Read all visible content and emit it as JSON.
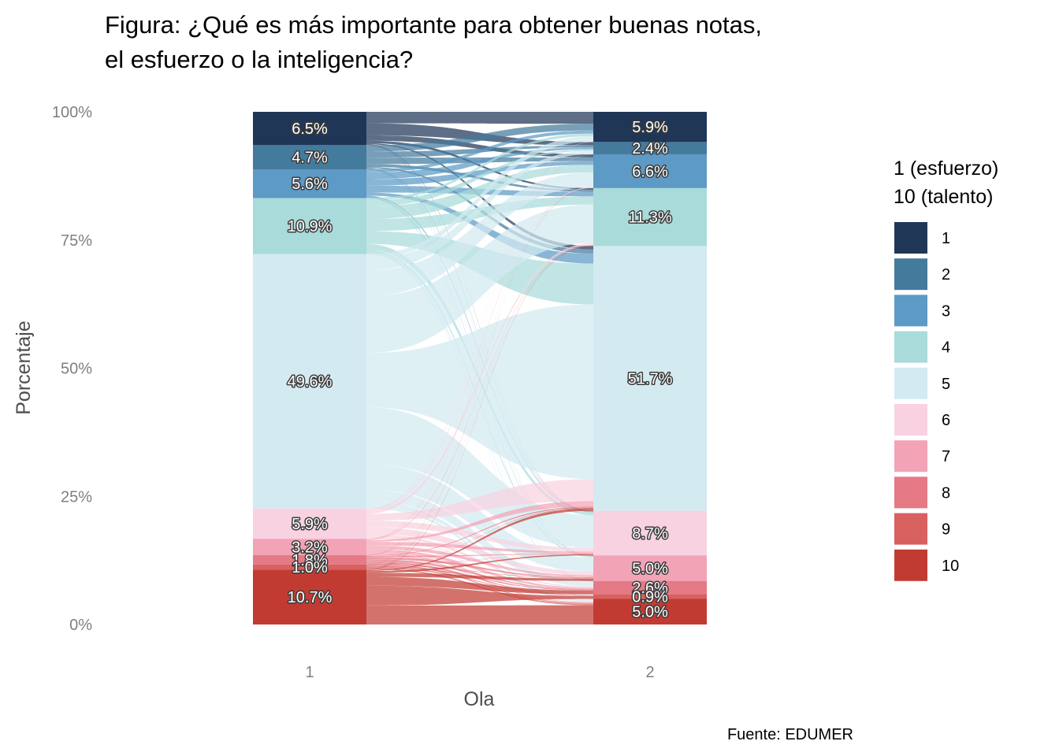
{
  "chart_data": {
    "type": "alluvial",
    "title": "Figura: ¿Qué es más importante para obtener buenas notas,",
    "title_line2": "el esfuerzo o la inteligencia?",
    "xlabel": "Ola",
    "ylabel": "Porcentaje",
    "caption": "Fuente: EDUMER",
    "x": [
      "1",
      "2"
    ],
    "ylim": [
      0,
      100
    ],
    "y_ticks": [
      "0%",
      "25%",
      "50%",
      "75%",
      "100%"
    ],
    "grid": false,
    "legend_position": "right",
    "legend_title": "1 (esfuerzo)",
    "legend_title_line2": "10 (talento)",
    "categories": [
      "1",
      "2",
      "3",
      "4",
      "5",
      "6",
      "7",
      "8",
      "9",
      "10"
    ],
    "colors": [
      "#1f3657",
      "#447a9c",
      "#5d9ac5",
      "#a8dbd9",
      "#d3eaf1",
      "#f8d2e1",
      "#f2a3b6",
      "#e57986",
      "#d8605f",
      "#c23b33"
    ],
    "series": [
      {
        "name": "Ola 1",
        "values": [
          6.5,
          4.7,
          5.6,
          10.9,
          49.6,
          5.9,
          3.2,
          1.8,
          1.0,
          10.7
        ],
        "labels": [
          "6.5%",
          "4.7%",
          "5.6%",
          "10.9%",
          "49.6%",
          "5.9%",
          "3.2%",
          "1.8%",
          "1.0%",
          "10.7%"
        ]
      },
      {
        "name": "Ola 2",
        "values": [
          5.9,
          2.4,
          6.6,
          11.3,
          51.7,
          8.7,
          5.0,
          2.6,
          0.9,
          5.0
        ],
        "labels": [
          "5.9%",
          "2.4%",
          "6.6%",
          "11.3%",
          "51.7%",
          "8.7%",
          "5.0%",
          "2.6%",
          "0.9%",
          "5.0%"
        ]
      }
    ]
  }
}
